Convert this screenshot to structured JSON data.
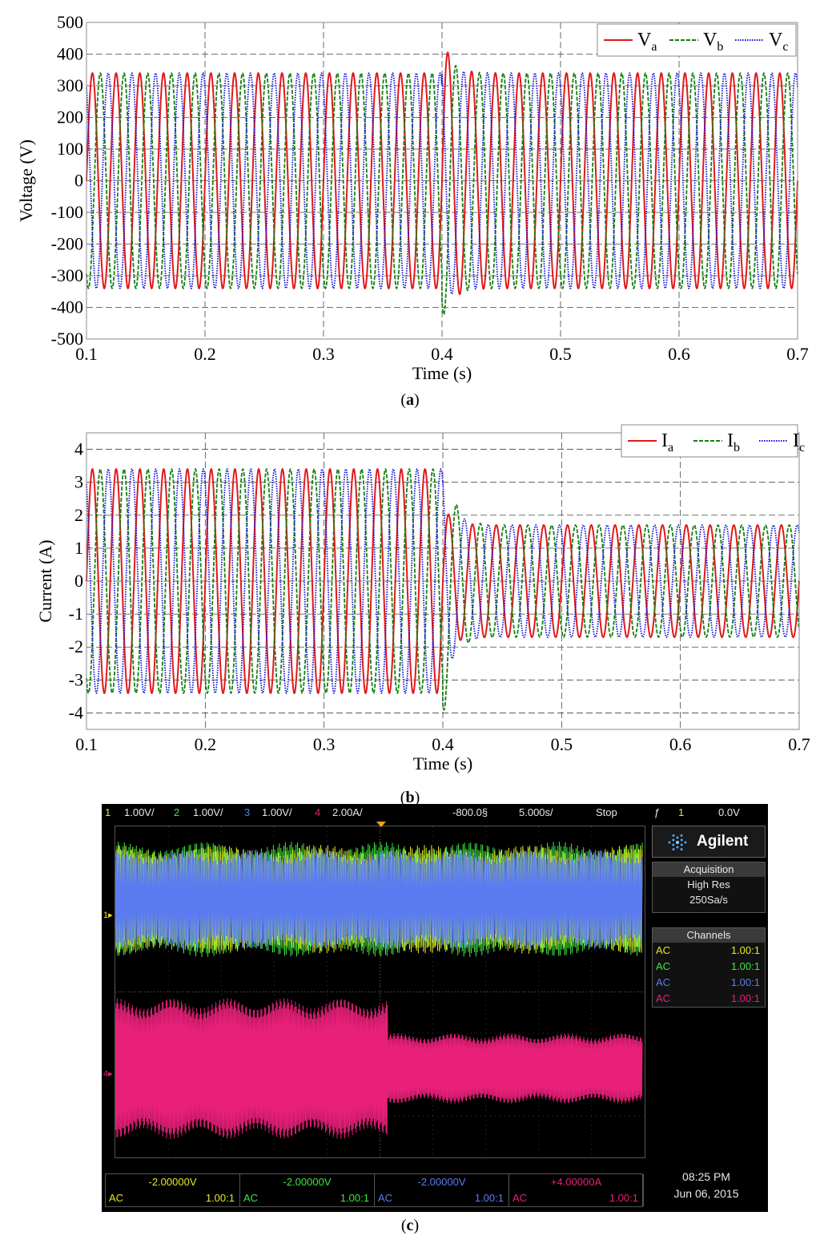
{
  "chart_data": [
    {
      "type": "line",
      "panel": "a",
      "xlabel": "Time (s)",
      "ylabel": "Voltage (V)",
      "xlim": [
        0.1,
        0.7
      ],
      "ylim": [
        -500,
        500
      ],
      "xticks": [
        0.1,
        0.2,
        0.3,
        0.4,
        0.5,
        0.6,
        0.7
      ],
      "yticks": [
        -500,
        -400,
        -300,
        -200,
        -100,
        0,
        100,
        200,
        300,
        400,
        500
      ],
      "grid": true,
      "legend_position": "top-right",
      "frequency_hz": 50,
      "series": [
        {
          "name": "V",
          "sub": "a",
          "color": "#e0191b",
          "dash": "solid",
          "phase_deg": 0,
          "amplitude_before": 340,
          "amplitude_after": 340,
          "transient_peak": -460
        },
        {
          "name": "V",
          "sub": "b",
          "color": "#138013",
          "dash": "dashed",
          "phase_deg": -120,
          "amplitude_before": 340,
          "amplitude_after": 340,
          "transient_peak": 440
        },
        {
          "name": "V",
          "sub": "c",
          "color": "#1010d8",
          "dash": "dotted",
          "phase_deg": 120,
          "amplitude_before": 340,
          "amplitude_after": 340,
          "transient_peak": 390
        }
      ],
      "event_time": 0.4,
      "caption": "a"
    },
    {
      "type": "line",
      "panel": "b",
      "xlabel": "Time (s)",
      "ylabel": "Current (A)",
      "xlim": [
        0.1,
        0.7
      ],
      "ylim": [
        -4.5,
        4.5
      ],
      "xticks": [
        0.1,
        0.2,
        0.3,
        0.4,
        0.5,
        0.6,
        0.7
      ],
      "yticks": [
        -4,
        -3,
        -2,
        -1,
        0,
        1,
        2,
        3,
        4
      ],
      "grid": true,
      "legend_position": "top-right",
      "frequency_hz": 50,
      "series": [
        {
          "name": "I",
          "sub": "a",
          "color": "#e0191b",
          "dash": "solid",
          "phase_deg": 0,
          "amplitude_before": 3.4,
          "amplitude_after": 1.7,
          "transient_peak": -2.3
        },
        {
          "name": "I",
          "sub": "b",
          "color": "#138013",
          "dash": "dashed",
          "phase_deg": -120,
          "amplitude_before": 3.4,
          "amplitude_after": 1.7,
          "transient_peak": -4.3
        },
        {
          "name": "I",
          "sub": "c",
          "color": "#1010d8",
          "dash": "dotted",
          "phase_deg": 120,
          "amplitude_before": 3.4,
          "amplitude_after": 1.7,
          "transient_peak": 3.5
        }
      ],
      "event_time": 0.4,
      "caption": "b"
    }
  ],
  "scope": {
    "topbar": {
      "ch1": "1",
      "ch1_scale": "1.00V/",
      "ch2": "2",
      "ch2_scale": "1.00V/",
      "ch3": "3",
      "ch3_scale": "1.00V/",
      "ch4": "4",
      "ch4_scale": "2.00A/",
      "delay": "-800.0§",
      "timebase": "5.000s/",
      "run_state": "Stop",
      "trigger_symbol": "ƒ",
      "trigger_channel": "1",
      "trigger_level": "0.0V"
    },
    "brand": "Agilent",
    "acquisition": {
      "header": "Acquisition",
      "mode": "High Res",
      "rate": "250Sa/s"
    },
    "channels": {
      "header": "Channels",
      "rows": [
        {
          "coupling": "AC",
          "probe": "1.00:1",
          "color": "#e8e820"
        },
        {
          "coupling": "AC",
          "probe": "1.00:1",
          "color": "#3ee83e"
        },
        {
          "coupling": "AC",
          "probe": "1.00:1",
          "color": "#5a7cf0"
        },
        {
          "coupling": "AC",
          "probe": "1.00:1",
          "color": "#e8207a"
        }
      ]
    },
    "bottom": [
      {
        "offset": "-2.00000V",
        "coupling": "AC",
        "probe": "1.00:1",
        "color": "#e8e820"
      },
      {
        "offset": "-2.00000V",
        "coupling": "AC",
        "probe": "1.00:1",
        "color": "#3ee83e"
      },
      {
        "offset": "-2.00000V",
        "coupling": "AC",
        "probe": "1.00:1",
        "color": "#5a7cf0"
      },
      {
        "offset": "+4.00000A",
        "coupling": "AC",
        "probe": "1.00:1",
        "color": "#e8207a"
      }
    ],
    "clock": {
      "time": "08:25 PM",
      "date": "Jun 06, 2015"
    },
    "marker_voltage": "1",
    "marker_current": "4",
    "caption": "c"
  }
}
